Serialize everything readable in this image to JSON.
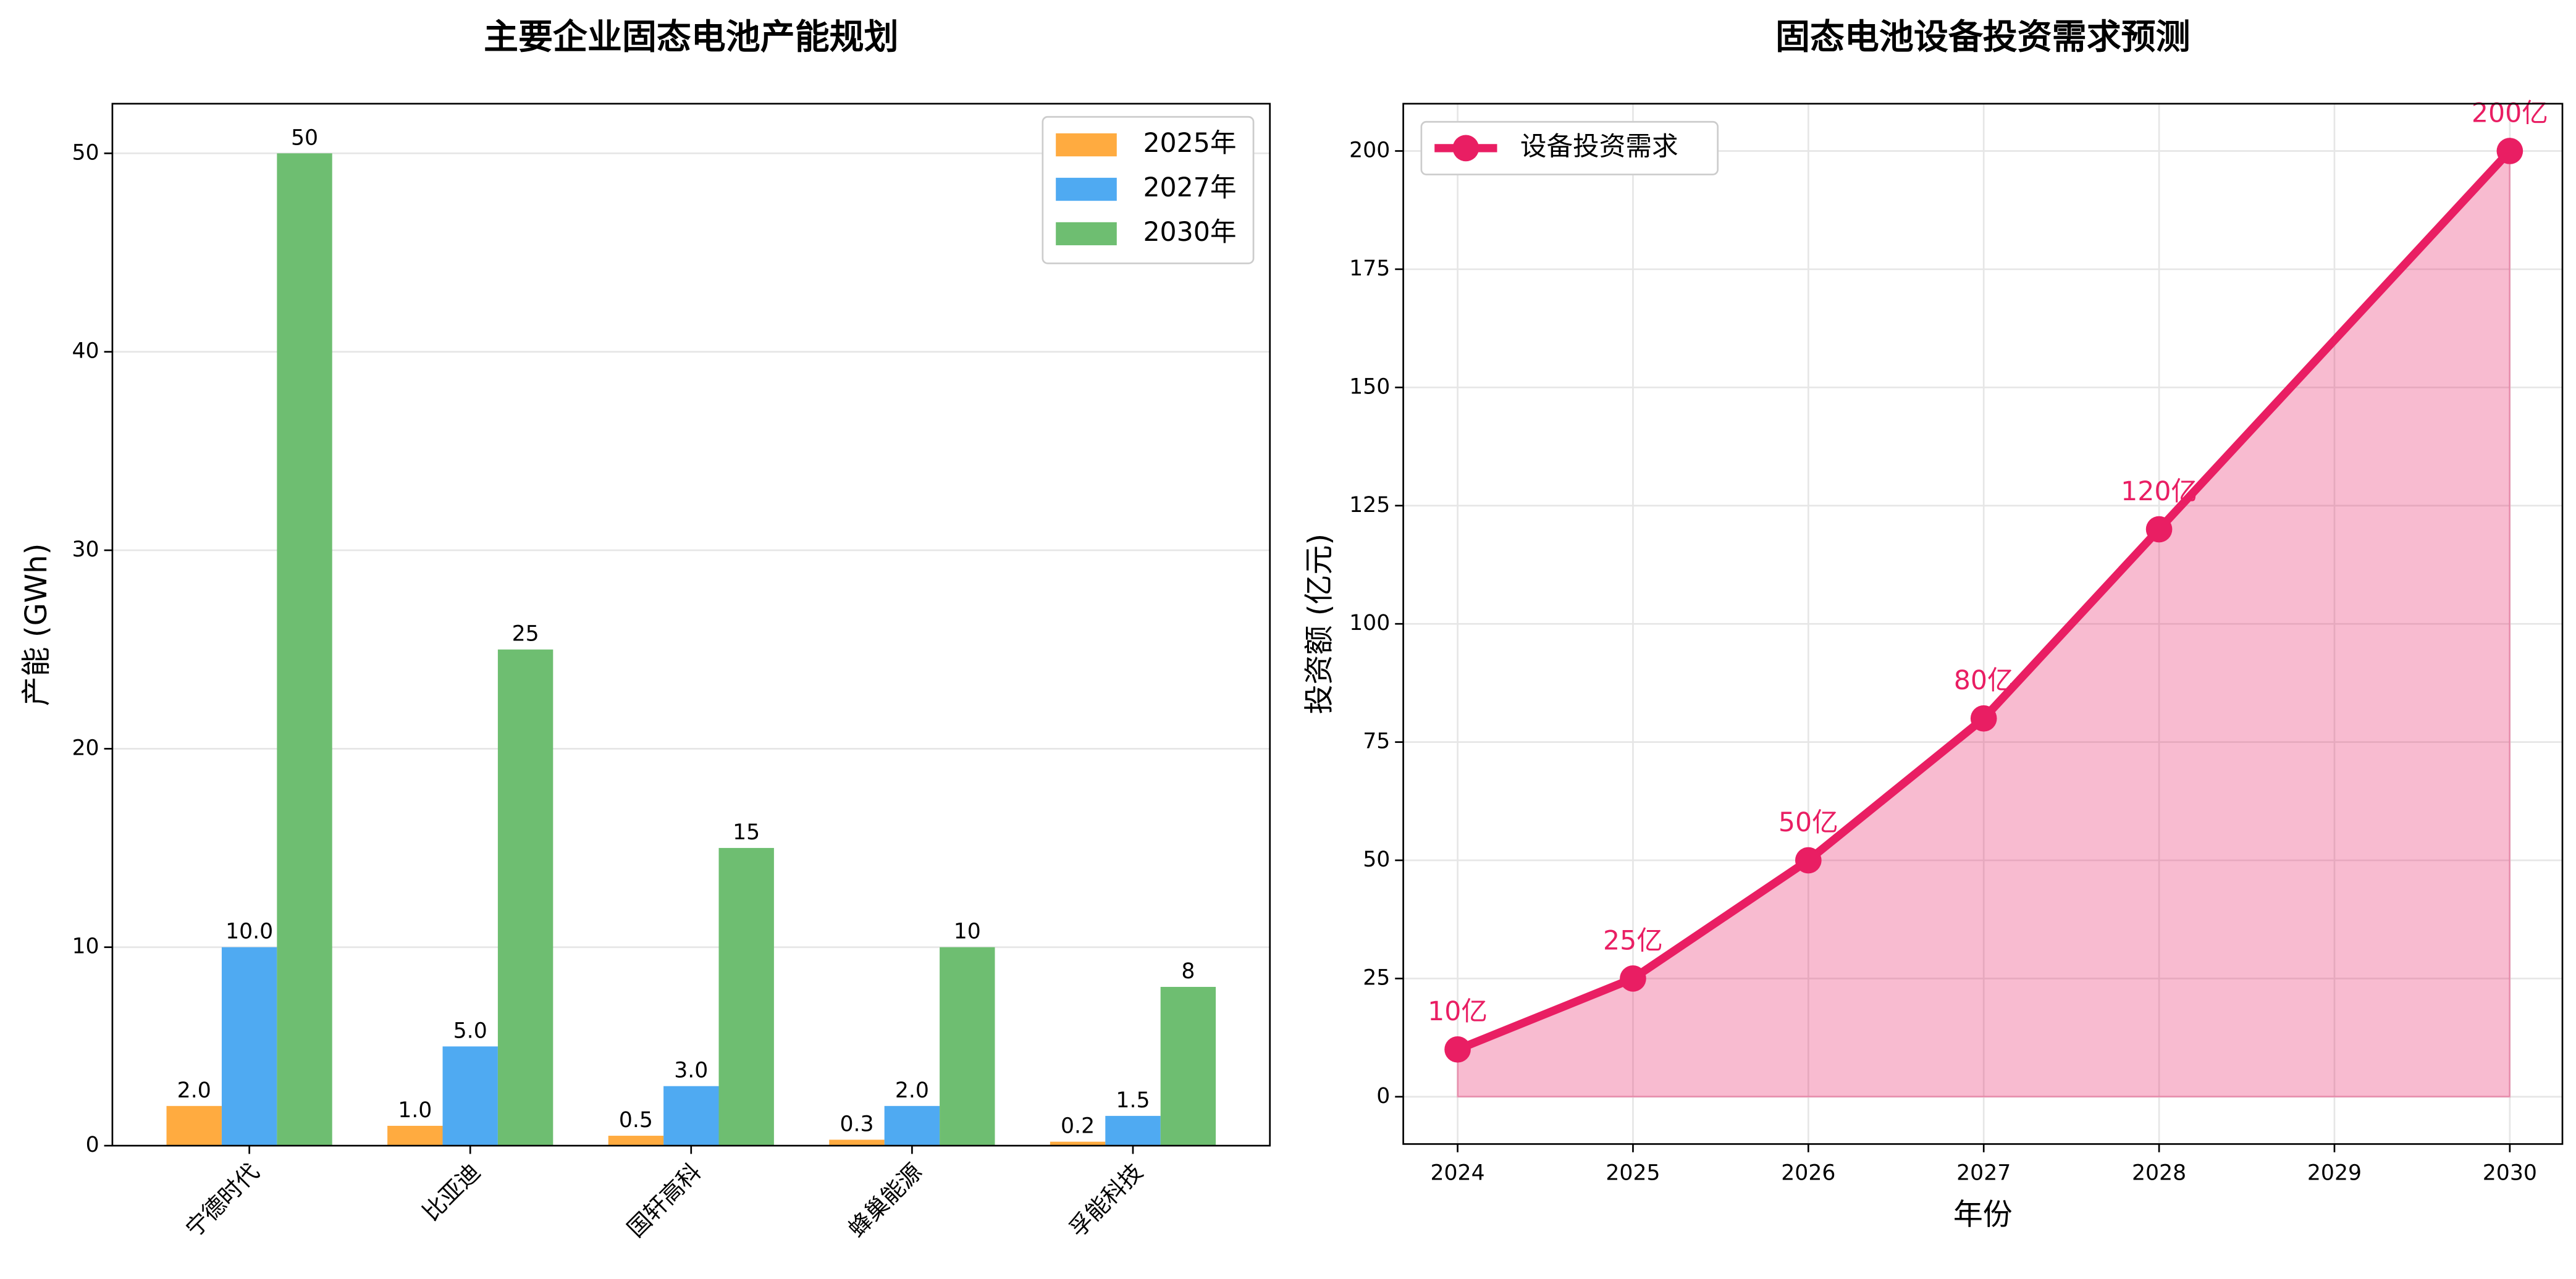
{
  "chart_data": [
    {
      "type": "bar",
      "title": "主要企业固态电池产能规划",
      "y_label": "产能 (GWh)",
      "categories": [
        "宁德时代",
        "比亚迪",
        "国轩高科",
        "蜂巢能源",
        "孚能科技"
      ],
      "series": [
        {
          "name": "2025年",
          "color": "#ffab40",
          "values": [
            2,
            1,
            0.5,
            0.3,
            0.2
          ],
          "value_labels": [
            "2.0",
            "1.0",
            "0.5",
            "0.3",
            "0.2"
          ]
        },
        {
          "name": "2027年",
          "color": "#4faaf2",
          "values": [
            10,
            5,
            3,
            2,
            1.5
          ],
          "value_labels": [
            "10.0",
            "5.0",
            "3.0",
            "2.0",
            "1.5"
          ]
        },
        {
          "name": "2030年",
          "color": "#6ebe71",
          "values": [
            50,
            25,
            15,
            10,
            8
          ]
        }
      ],
      "ylim": [
        0,
        52.5
      ],
      "yticks": [
        0,
        10,
        20,
        30,
        40,
        50
      ],
      "grid": "y",
      "legend": "upper right"
    },
    {
      "type": "line",
      "title": "固态电池设备投资需求预测",
      "x_label": "年份",
      "y_label": "投资额 (亿元)",
      "x": [
        2024,
        2025,
        2026,
        2027,
        2028,
        2030
      ],
      "series": [
        {
          "name": "设备投资需求",
          "color": "#e91e63",
          "values": [
            10,
            25,
            50,
            80,
            120,
            200
          ],
          "value_labels": [
            "10亿",
            "25亿",
            "50亿",
            "80亿",
            "120亿",
            "200亿"
          ]
        }
      ],
      "xlim": [
        2023.69,
        2030.3
      ],
      "xticks": [
        2024,
        2025,
        2026,
        2027,
        2028,
        2029,
        2030
      ],
      "ylim": [
        -10,
        210
      ],
      "yticks": [
        0,
        25,
        50,
        75,
        100,
        125,
        150,
        175,
        200
      ],
      "grid": "both",
      "fill": true,
      "legend": "upper left"
    }
  ]
}
